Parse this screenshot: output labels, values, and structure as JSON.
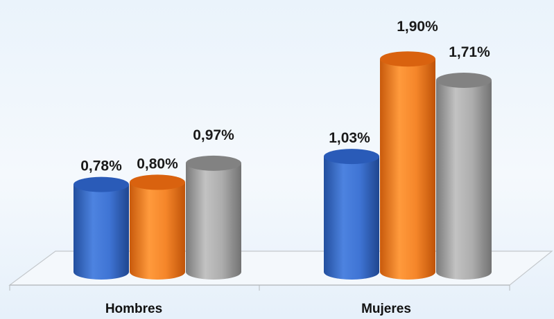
{
  "chart_data": {
    "type": "bar",
    "style": "3d-cylinder",
    "categories": [
      "Hombres",
      "Mujeres"
    ],
    "series": [
      {
        "values": [
          0.78,
          1.03
        ],
        "labels": [
          "0,78%",
          "1,03%"
        ],
        "color": "#3a6fd0"
      },
      {
        "values": [
          0.8,
          1.9
        ],
        "labels": [
          "0,80%",
          "1,90%"
        ],
        "color": "#f07c1e"
      },
      {
        "values": [
          0.97,
          1.71
        ],
        "labels": [
          "0,97%",
          "1,71%"
        ],
        "color": "#9a9a9a"
      }
    ],
    "ylim": [
      0,
      2.2
    ],
    "grid": false,
    "legend": "none"
  }
}
